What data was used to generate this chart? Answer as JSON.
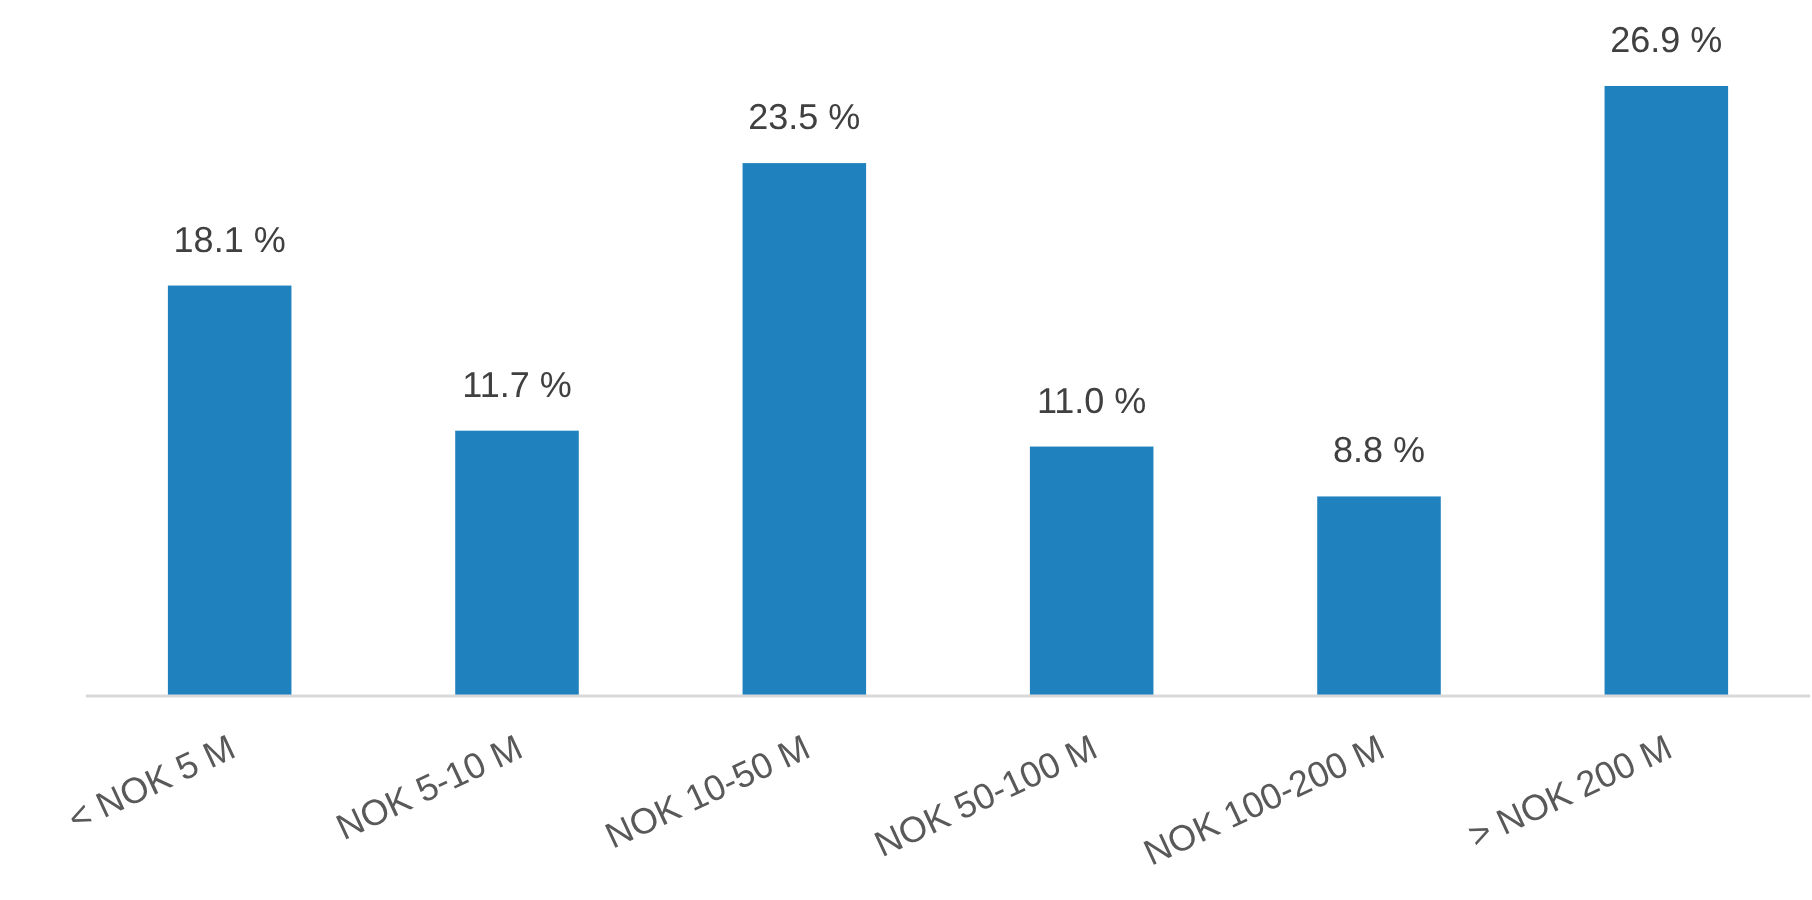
{
  "chart_data": {
    "type": "bar",
    "categories": [
      "< NOK 5 M",
      "NOK 5-10 M",
      "NOK 10-50 M",
      "NOK 50-100 M",
      "NOK 100-200 M",
      "> NOK 200 M"
    ],
    "values": [
      18.1,
      11.7,
      23.5,
      11.0,
      8.8,
      26.9
    ],
    "value_labels": [
      "18.1 %",
      "11.7 %",
      "23.5 %",
      "11.0 %",
      "8.8 %",
      "26.9 %"
    ],
    "color": "#1f81bd"
  }
}
